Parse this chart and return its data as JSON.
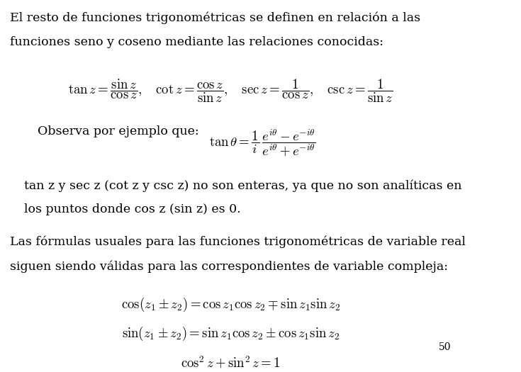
{
  "bg_color": "#ffffff",
  "text_color": "#000000",
  "page_number": "50",
  "para1_line1": "El resto de funciones trigonométricas se definen en relación a las",
  "para1_line2": "funciones seno y coseno mediante las relaciones conocidas:",
  "observa_text": "Observa por ejemplo que:",
  "para2_line1": "tan z y sec z (cot z y csc z) no son enteras, ya que no son analíticas en",
  "para2_line2": "los puntos donde cos z (sin z) es 0.",
  "para3_line1": "Las fórmulas usuales para las funciones trigonométricas de variable real",
  "para3_line2": "siguen siendo válidas para las correspondientes de variable compleja:",
  "body_fs": 12.5,
  "formula_fs": 13.5,
  "small_fs": 10
}
